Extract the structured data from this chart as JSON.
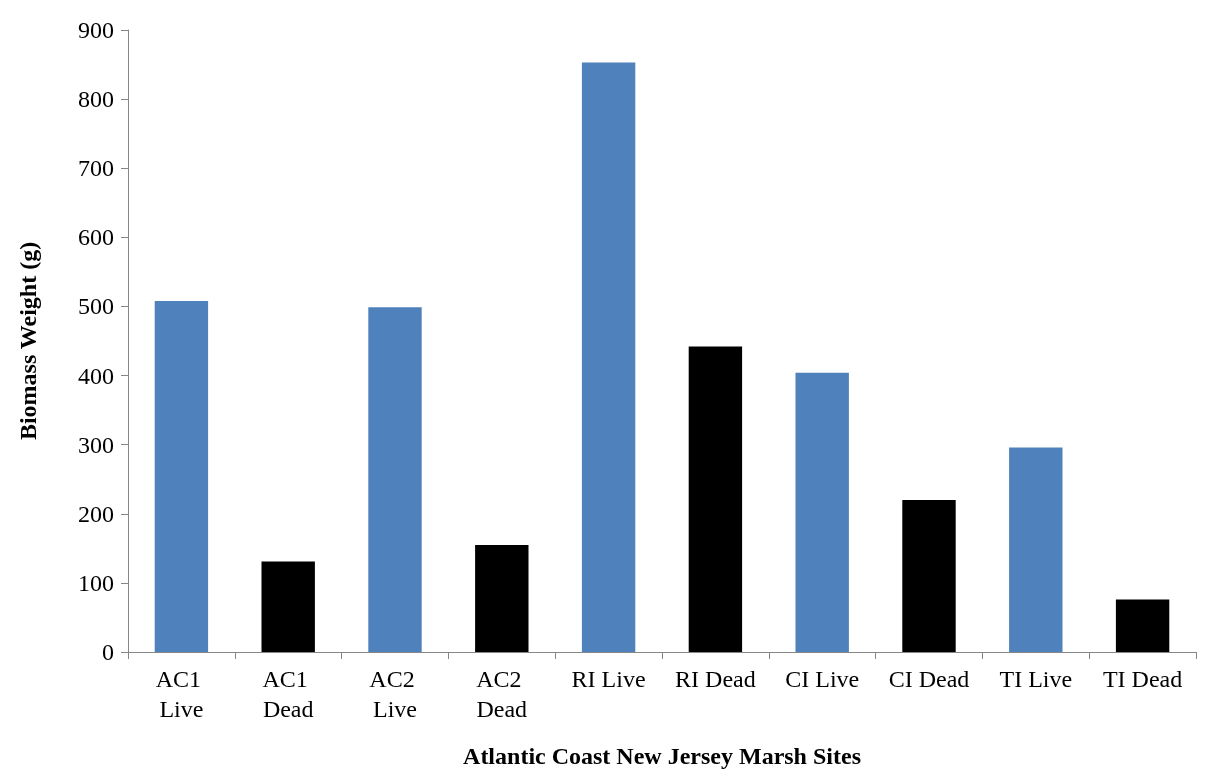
{
  "chart_data": {
    "type": "bar",
    "xlabel": "Atlantic Coast New Jersey Marsh Sites",
    "ylabel": "Biomass Weight (g)",
    "categories": [
      "AC1 Live",
      "AC1 Dead",
      "AC2 Live",
      "AC2 Dead",
      "RI Live",
      "RI Dead",
      "CI Live",
      "CI Dead",
      "TI Live",
      "TI Dead"
    ],
    "values": [
      508,
      131,
      499,
      155,
      853,
      442,
      404,
      220,
      296,
      76
    ],
    "colors": [
      "#4f81bd",
      "#000000",
      "#4f81bd",
      "#000000",
      "#4f81bd",
      "#000000",
      "#4f81bd",
      "#000000",
      "#4f81bd",
      "#000000"
    ],
    "ylim": [
      0,
      900
    ],
    "yticks": [
      0,
      100,
      200,
      300,
      400,
      500,
      600,
      700,
      800,
      900
    ],
    "grid": false
  }
}
